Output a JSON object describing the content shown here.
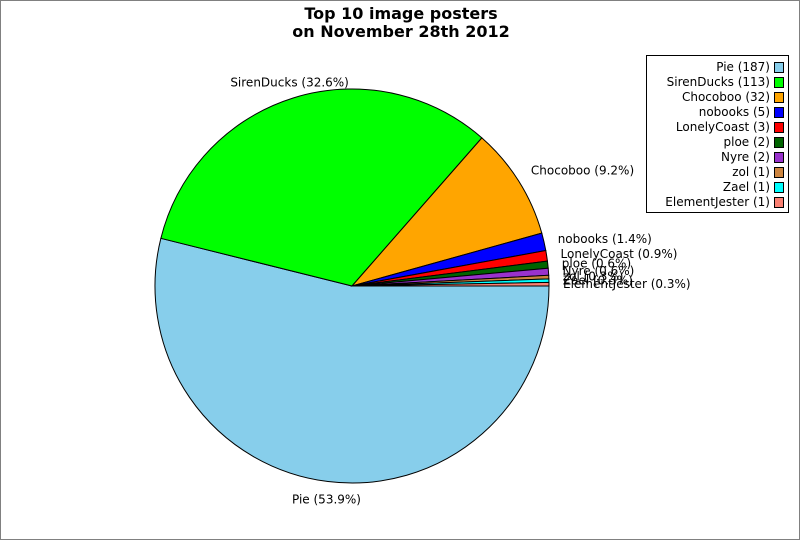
{
  "chart_data": {
    "type": "pie",
    "title_lines": [
      "Top 10 image posters",
      "on November 28th 2012"
    ],
    "slices": [
      {
        "name": "Pie",
        "value": 187,
        "label": "Pie (53.9%)",
        "legend": "Pie (187)",
        "color": "#87CEEB"
      },
      {
        "name": "SirenDucks",
        "value": 113,
        "label": "SirenDucks (32.6%)",
        "legend": "SirenDucks (113)",
        "color": "#00FF00"
      },
      {
        "name": "Chocoboo",
        "value": 32,
        "label": "Chocoboo (9.2%)",
        "legend": "Chocoboo (32)",
        "color": "#FFA500"
      },
      {
        "name": "nobooks",
        "value": 5,
        "label": "nobooks (1.4%)",
        "legend": "nobooks (5)",
        "color": "#0000FF"
      },
      {
        "name": "LonelyCoast",
        "value": 3,
        "label": "LonelyCoast (0.9%)",
        "legend": "LonelyCoast (3)",
        "color": "#FF0000"
      },
      {
        "name": "ploe",
        "value": 2,
        "label": "ploe (0.6%)",
        "legend": "ploe (2)",
        "color": "#006400"
      },
      {
        "name": "Nyre",
        "value": 2,
        "label": "Nyre (0.6%)",
        "legend": "Nyre (2)",
        "color": "#9932CC"
      },
      {
        "name": "zol",
        "value": 1,
        "label": "zol (0.3%)",
        "legend": "zol (1)",
        "color": "#CD853F"
      },
      {
        "name": "Zael",
        "value": 1,
        "label": "Zael (0.3%)",
        "legend": "Zael (1)",
        "color": "#00FFFF"
      },
      {
        "name": "ElementJester",
        "value": 1,
        "label": "ElementJester (0.3%)",
        "legend": "ElementJester (1)",
        "color": "#FA8072"
      }
    ],
    "legend_position": "top-right"
  }
}
